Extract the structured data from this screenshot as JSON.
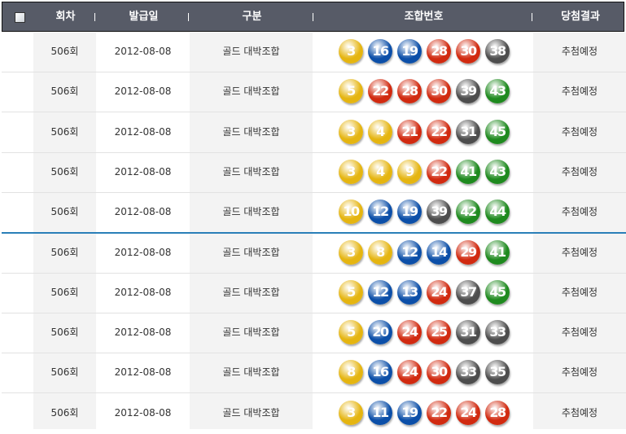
{
  "header": {
    "columns": [
      "회차",
      "발급일",
      "구분",
      "조합번호",
      "당첨결과"
    ]
  },
  "ball_colors": {
    "1-10": "#e5b511",
    "11-20": "#0c4fa8",
    "21-30": "#d12a10",
    "31-40": "#4d4d4d",
    "41-45": "#1f8a1f"
  },
  "rows": [
    {
      "round": "506회",
      "date": "2012-08-08",
      "type": "골드 대박조합",
      "numbers": [
        3,
        16,
        19,
        28,
        30,
        38
      ],
      "result": "추첨예정"
    },
    {
      "round": "506회",
      "date": "2012-08-08",
      "type": "골드 대박조합",
      "numbers": [
        5,
        22,
        28,
        30,
        39,
        43
      ],
      "result": "추첨예정"
    },
    {
      "round": "506회",
      "date": "2012-08-08",
      "type": "골드 대박조합",
      "numbers": [
        3,
        4,
        21,
        22,
        31,
        45
      ],
      "result": "추첨예정"
    },
    {
      "round": "506회",
      "date": "2012-08-08",
      "type": "골드 대박조합",
      "numbers": [
        3,
        4,
        9,
        22,
        41,
        43
      ],
      "result": "추첨예정"
    },
    {
      "round": "506회",
      "date": "2012-08-08",
      "type": "골드 대박조합",
      "numbers": [
        10,
        12,
        19,
        39,
        42,
        44
      ],
      "result": "추첨예정"
    },
    {
      "round": "506회",
      "date": "2012-08-08",
      "type": "골드 대박조합",
      "numbers": [
        3,
        8,
        12,
        14,
        29,
        41
      ],
      "result": "추첨예정"
    },
    {
      "round": "506회",
      "date": "2012-08-08",
      "type": "골드 대박조합",
      "numbers": [
        5,
        12,
        13,
        24,
        37,
        45
      ],
      "result": "추첨예정"
    },
    {
      "round": "506회",
      "date": "2012-08-08",
      "type": "골드 대박조합",
      "numbers": [
        5,
        20,
        24,
        25,
        31,
        33
      ],
      "result": "추첨예정"
    },
    {
      "round": "506회",
      "date": "2012-08-08",
      "type": "골드 대박조합",
      "numbers": [
        8,
        16,
        24,
        30,
        33,
        35
      ],
      "result": "추첨예정"
    },
    {
      "round": "506회",
      "date": "2012-08-08",
      "type": "골드 대박조합",
      "numbers": [
        3,
        11,
        19,
        22,
        24,
        28
      ],
      "result": "추첨예정"
    }
  ]
}
